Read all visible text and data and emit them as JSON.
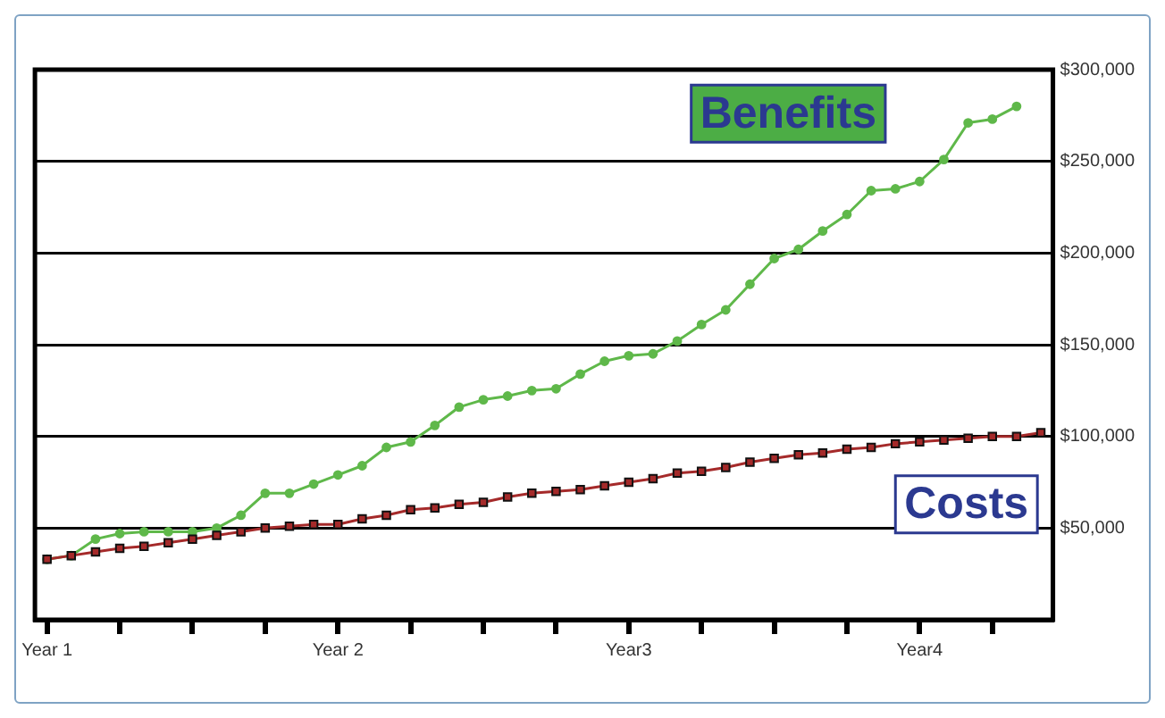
{
  "chart_data": {
    "type": "line",
    "categories": [
      "Year 1",
      null,
      null,
      null,
      null,
      null,
      null,
      null,
      null,
      null,
      null,
      null,
      "Year 2",
      null,
      null,
      null,
      null,
      null,
      null,
      null,
      null,
      null,
      null,
      null,
      "Year3",
      null,
      null,
      null,
      null,
      null,
      null,
      null,
      null,
      null,
      null,
      null,
      "Year4",
      null,
      null,
      null,
      null,
      null
    ],
    "series": [
      {
        "name": "Benefits",
        "color": "#5fb84a",
        "marker": "circle",
        "values": [
          33000,
          35000,
          44000,
          47000,
          48000,
          48000,
          48000,
          50000,
          57000,
          69000,
          69000,
          74000,
          79000,
          84000,
          94000,
          97000,
          106000,
          116000,
          120000,
          122000,
          125000,
          126000,
          134000,
          141000,
          144000,
          145000,
          152000,
          161000,
          169000,
          183000,
          197000,
          202000,
          212000,
          221000,
          234000,
          235000,
          239000,
          251000,
          271000,
          273000,
          280000,
          null
        ]
      },
      {
        "name": "Costs",
        "color": "#a52a2a",
        "marker": "square",
        "values": [
          33000,
          35000,
          37000,
          39000,
          40000,
          42000,
          44000,
          46000,
          48000,
          50000,
          51000,
          52000,
          52000,
          55000,
          57000,
          60000,
          61000,
          63000,
          64000,
          67000,
          69000,
          70000,
          71000,
          73000,
          75000,
          77000,
          80000,
          81000,
          83000,
          86000,
          88000,
          90000,
          91000,
          93000,
          94000,
          96000,
          97000,
          98000,
          99000,
          100000,
          100000,
          102000
        ]
      }
    ],
    "ylim": [
      0,
      300000
    ],
    "yticks": [
      {
        "value": 50000,
        "label": "$50,000"
      },
      {
        "value": 100000,
        "label": "$100,000"
      },
      {
        "value": 150000,
        "label": "$150,000"
      },
      {
        "value": 200000,
        "label": "$200,000"
      },
      {
        "value": 250000,
        "label": "$250,000"
      },
      {
        "value": 300000,
        "label": "$300,000"
      }
    ],
    "grid": "y",
    "legend": false,
    "line_style": "solid"
  }
}
